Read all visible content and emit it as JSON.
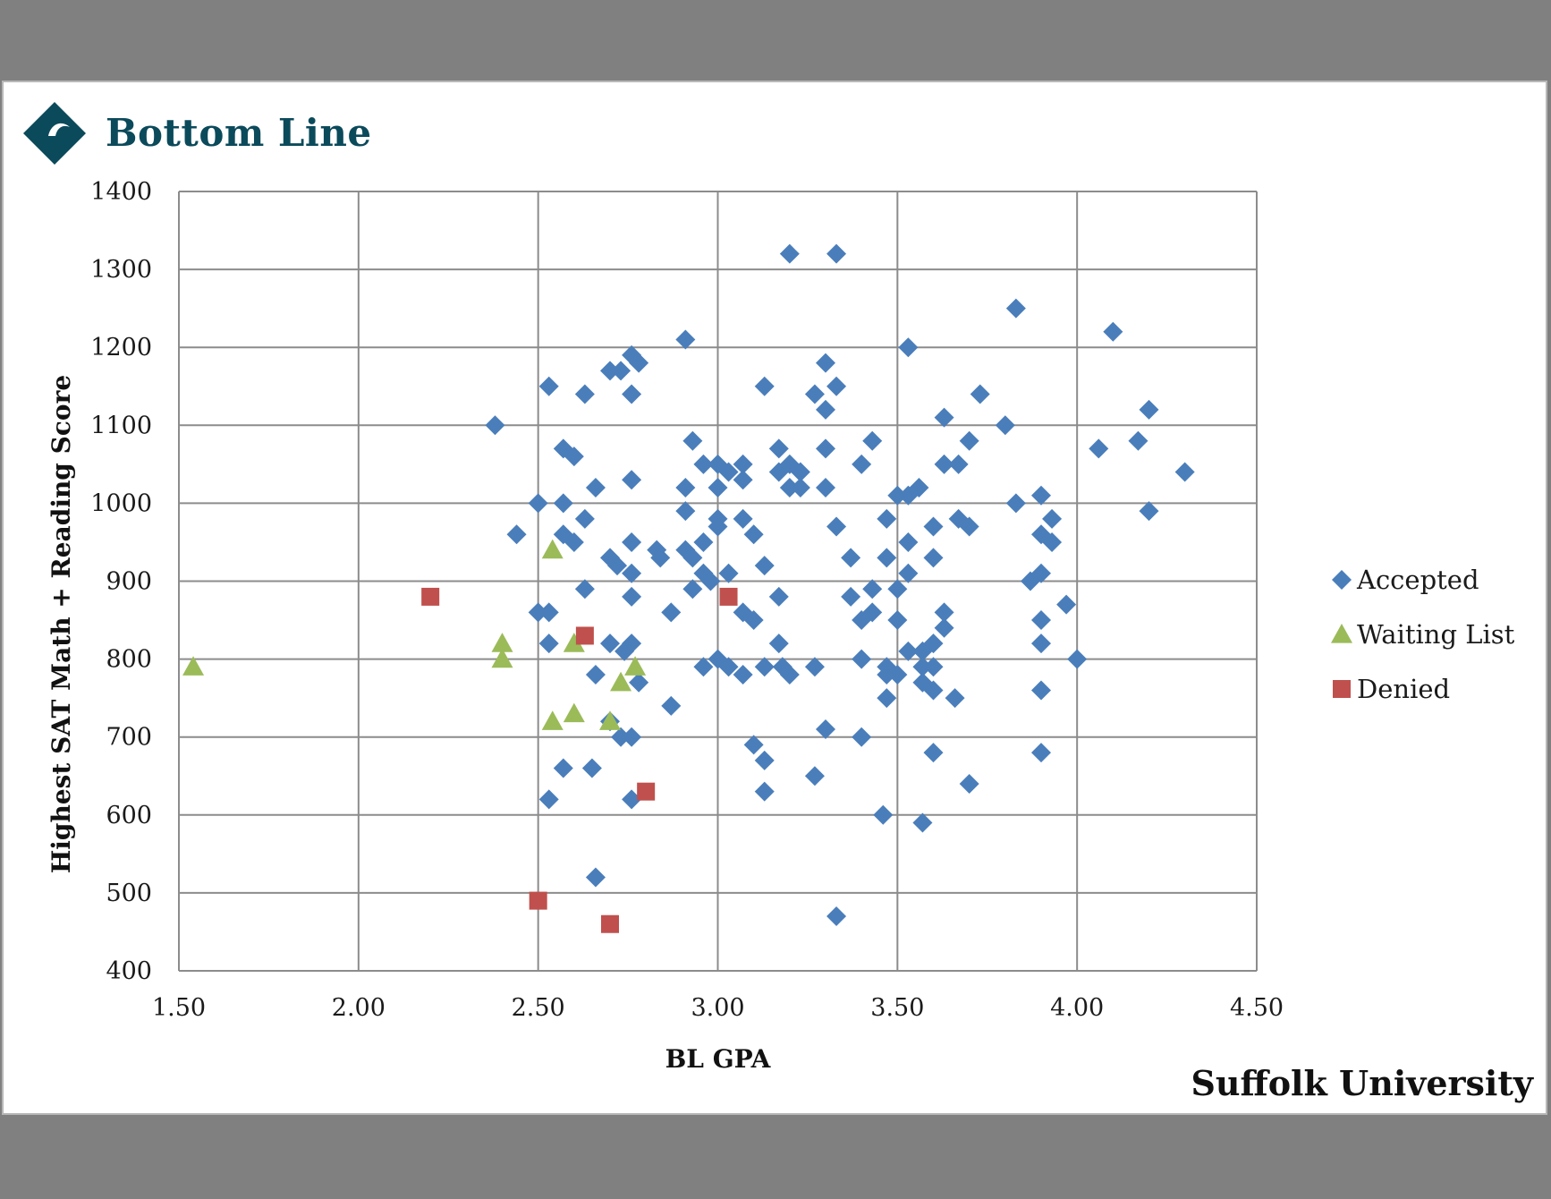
{
  "header": {
    "brand": "Bottom Line",
    "logo_icon": "bottom-line-diamond-logo",
    "brand_color": "#0b4a5b"
  },
  "footer": {
    "school": "Suffolk University"
  },
  "chart_data": {
    "type": "scatter",
    "xlabel": "BL GPA",
    "ylabel": "Highest SAT Math + Reading Score",
    "xlim": [
      1.5,
      4.5
    ],
    "ylim": [
      400,
      1400
    ],
    "x_ticks": [
      "1.50",
      "2.00",
      "2.50",
      "3.00",
      "3.50",
      "4.00",
      "4.50"
    ],
    "y_ticks": [
      "400",
      "500",
      "600",
      "700",
      "800",
      "900",
      "1000",
      "1100",
      "1200",
      "1300",
      "1400"
    ],
    "grid": true,
    "legend_position": "right",
    "series": [
      {
        "name": "Accepted",
        "marker": "diamond",
        "color": "#4a7ebb",
        "points": [
          [
            2.38,
            1100
          ],
          [
            2.44,
            960
          ],
          [
            2.5,
            1000
          ],
          [
            2.5,
            860
          ],
          [
            2.53,
            1150
          ],
          [
            2.53,
            860
          ],
          [
            2.53,
            820
          ],
          [
            2.53,
            620
          ],
          [
            2.57,
            1070
          ],
          [
            2.57,
            1000
          ],
          [
            2.57,
            960
          ],
          [
            2.57,
            660
          ],
          [
            2.6,
            1060
          ],
          [
            2.6,
            950
          ],
          [
            2.63,
            1140
          ],
          [
            2.63,
            980
          ],
          [
            2.63,
            890
          ],
          [
            2.65,
            660
          ],
          [
            2.66,
            1020
          ],
          [
            2.66,
            780
          ],
          [
            2.66,
            520
          ],
          [
            2.7,
            1170
          ],
          [
            2.7,
            930
          ],
          [
            2.7,
            820
          ],
          [
            2.7,
            720
          ],
          [
            2.72,
            920
          ],
          [
            2.73,
            1170
          ],
          [
            2.73,
            700
          ],
          [
            2.74,
            810
          ],
          [
            2.76,
            1190
          ],
          [
            2.76,
            1140
          ],
          [
            2.76,
            1030
          ],
          [
            2.76,
            950
          ],
          [
            2.76,
            910
          ],
          [
            2.76,
            880
          ],
          [
            2.76,
            820
          ],
          [
            2.76,
            700
          ],
          [
            2.76,
            620
          ],
          [
            2.78,
            1180
          ],
          [
            2.78,
            770
          ],
          [
            2.83,
            940
          ],
          [
            2.84,
            930
          ],
          [
            2.87,
            860
          ],
          [
            2.87,
            740
          ],
          [
            2.91,
            1210
          ],
          [
            2.91,
            1020
          ],
          [
            2.91,
            990
          ],
          [
            2.91,
            940
          ],
          [
            2.93,
            1080
          ],
          [
            2.93,
            930
          ],
          [
            2.93,
            890
          ],
          [
            2.96,
            1050
          ],
          [
            2.96,
            950
          ],
          [
            2.96,
            910
          ],
          [
            2.96,
            790
          ],
          [
            2.98,
            900
          ],
          [
            3.0,
            1050
          ],
          [
            3.0,
            1020
          ],
          [
            3.0,
            980
          ],
          [
            3.0,
            970
          ],
          [
            3.0,
            800
          ],
          [
            3.03,
            1040
          ],
          [
            3.03,
            910
          ],
          [
            3.03,
            790
          ],
          [
            3.07,
            1050
          ],
          [
            3.07,
            1030
          ],
          [
            3.07,
            980
          ],
          [
            3.07,
            860
          ],
          [
            3.07,
            780
          ],
          [
            3.1,
            960
          ],
          [
            3.1,
            850
          ],
          [
            3.1,
            690
          ],
          [
            3.13,
            1150
          ],
          [
            3.13,
            920
          ],
          [
            3.13,
            790
          ],
          [
            3.13,
            670
          ],
          [
            3.13,
            630
          ],
          [
            3.17,
            1070
          ],
          [
            3.17,
            1040
          ],
          [
            3.17,
            880
          ],
          [
            3.17,
            820
          ],
          [
            3.18,
            790
          ],
          [
            3.2,
            1320
          ],
          [
            3.2,
            1050
          ],
          [
            3.2,
            1020
          ],
          [
            3.2,
            780
          ],
          [
            3.23,
            1040
          ],
          [
            3.23,
            1020
          ],
          [
            3.27,
            1140
          ],
          [
            3.27,
            790
          ],
          [
            3.27,
            650
          ],
          [
            3.3,
            1180
          ],
          [
            3.3,
            1120
          ],
          [
            3.3,
            1070
          ],
          [
            3.3,
            1020
          ],
          [
            3.3,
            710
          ],
          [
            3.33,
            1320
          ],
          [
            3.33,
            1150
          ],
          [
            3.33,
            970
          ],
          [
            3.33,
            470
          ],
          [
            3.37,
            930
          ],
          [
            3.37,
            880
          ],
          [
            3.4,
            1050
          ],
          [
            3.4,
            850
          ],
          [
            3.4,
            800
          ],
          [
            3.4,
            700
          ],
          [
            3.43,
            1080
          ],
          [
            3.43,
            890
          ],
          [
            3.43,
            860
          ],
          [
            3.46,
            600
          ],
          [
            3.47,
            980
          ],
          [
            3.47,
            930
          ],
          [
            3.47,
            790
          ],
          [
            3.47,
            780
          ],
          [
            3.47,
            750
          ],
          [
            3.5,
            1010
          ],
          [
            3.5,
            890
          ],
          [
            3.5,
            850
          ],
          [
            3.5,
            780
          ],
          [
            3.53,
            1200
          ],
          [
            3.53,
            1010
          ],
          [
            3.53,
            950
          ],
          [
            3.53,
            910
          ],
          [
            3.53,
            810
          ],
          [
            3.56,
            1020
          ],
          [
            3.57,
            810
          ],
          [
            3.57,
            790
          ],
          [
            3.57,
            770
          ],
          [
            3.57,
            590
          ],
          [
            3.6,
            970
          ],
          [
            3.6,
            930
          ],
          [
            3.6,
            820
          ],
          [
            3.6,
            790
          ],
          [
            3.6,
            760
          ],
          [
            3.6,
            680
          ],
          [
            3.63,
            1110
          ],
          [
            3.63,
            1050
          ],
          [
            3.63,
            860
          ],
          [
            3.63,
            840
          ],
          [
            3.66,
            750
          ],
          [
            3.67,
            1050
          ],
          [
            3.67,
            980
          ],
          [
            3.7,
            1080
          ],
          [
            3.7,
            970
          ],
          [
            3.7,
            640
          ],
          [
            3.73,
            1140
          ],
          [
            3.8,
            1100
          ],
          [
            3.83,
            1250
          ],
          [
            3.83,
            1000
          ],
          [
            3.87,
            900
          ],
          [
            3.9,
            1010
          ],
          [
            3.9,
            960
          ],
          [
            3.9,
            910
          ],
          [
            3.9,
            850
          ],
          [
            3.9,
            820
          ],
          [
            3.9,
            760
          ],
          [
            3.9,
            680
          ],
          [
            3.93,
            980
          ],
          [
            3.93,
            950
          ],
          [
            3.97,
            870
          ],
          [
            4.0,
            800
          ],
          [
            4.06,
            1070
          ],
          [
            4.1,
            1220
          ],
          [
            4.17,
            1080
          ],
          [
            4.2,
            1120
          ],
          [
            4.2,
            990
          ],
          [
            4.3,
            1040
          ]
        ]
      },
      {
        "name": "Waiting List",
        "marker": "triangle",
        "color": "#9bbb59",
        "points": [
          [
            1.54,
            790
          ],
          [
            2.4,
            820
          ],
          [
            2.4,
            800
          ],
          [
            2.54,
            940
          ],
          [
            2.54,
            720
          ],
          [
            2.6,
            820
          ],
          [
            2.6,
            730
          ],
          [
            2.7,
            720
          ],
          [
            2.73,
            770
          ],
          [
            2.77,
            790
          ]
        ]
      },
      {
        "name": "Denied",
        "marker": "square",
        "color": "#c0504d",
        "points": [
          [
            2.2,
            880
          ],
          [
            2.5,
            490
          ],
          [
            2.63,
            830
          ],
          [
            2.7,
            460
          ],
          [
            2.8,
            630
          ],
          [
            3.03,
            880
          ]
        ]
      }
    ]
  }
}
